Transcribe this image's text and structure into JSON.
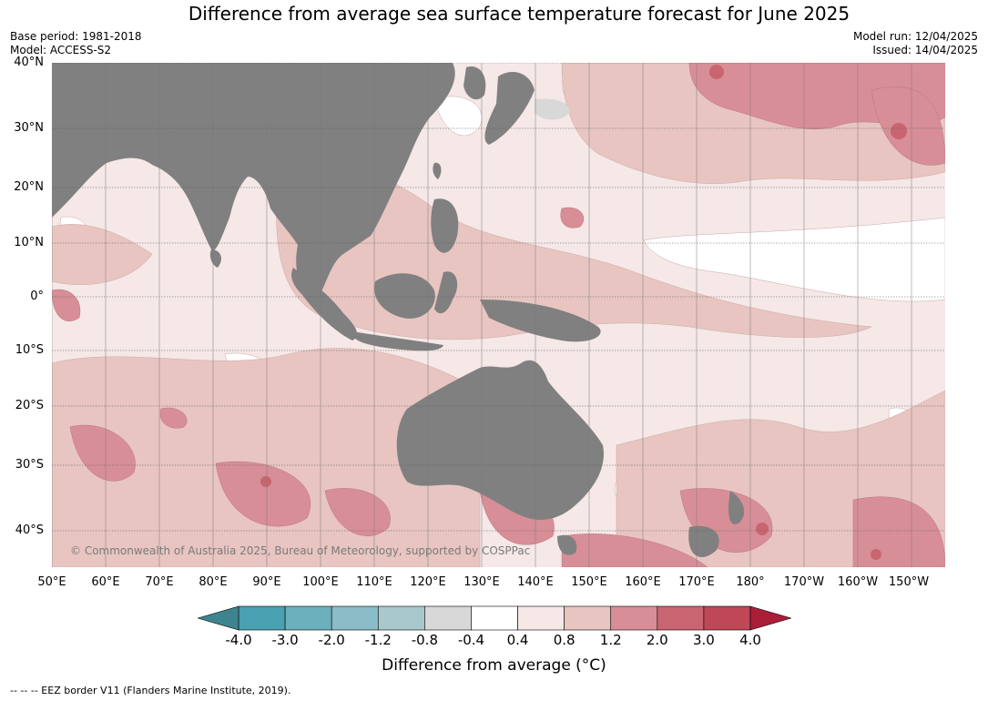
{
  "title": "Difference from average sea surface temperature forecast for June 2025",
  "meta": {
    "base_period": "Base period: 1981-2018",
    "model": "Model: ACCESS-S2",
    "model_run": "Model run: 12/04/2025",
    "issued": "Issued: 14/04/2025"
  },
  "copyright": "© Commonwealth of Australia 2025, Bureau of Meteorology, supported by COSPPac",
  "latitude_labels": [
    "40°N",
    "30°N",
    "20°N",
    "10°N",
    "0°",
    "10°S",
    "20°S",
    "30°S",
    "40°S"
  ],
  "longitude_labels": [
    "50°E",
    "60°E",
    "70°E",
    "80°E",
    "90°E",
    "100°E",
    "110°E",
    "120°E",
    "130°E",
    "140°E",
    "150°E",
    "160°E",
    "170°E",
    "180°",
    "170°W",
    "160°W",
    "150°W"
  ],
  "colorbar": {
    "title": "Difference from average (°C)",
    "tick_labels": [
      "-4.0",
      "-3.0",
      "-2.0",
      "-1.2",
      "-0.8",
      "-0.4",
      "0.4",
      "0.8",
      "1.2",
      "2.0",
      "3.0",
      "4.0"
    ],
    "colors": [
      "#49a1b2",
      "#6cb0be",
      "#8bbcc7",
      "#a8c8cc",
      "#d8d8d8",
      "#ffffff",
      "#f5e8e7",
      "#e8c5c1",
      "#d88e97",
      "#c96570",
      "#bf4756"
    ],
    "under_color": "#3e848e",
    "over_color": "#aa1e37"
  },
  "palette": {
    "land": "#808080",
    "ocean_base": "#f5e8e7",
    "missing": "#d8d8d8"
  },
  "footer": "-- -- -- EEZ border V11 (Flanders Marine Institute, 2019)."
}
